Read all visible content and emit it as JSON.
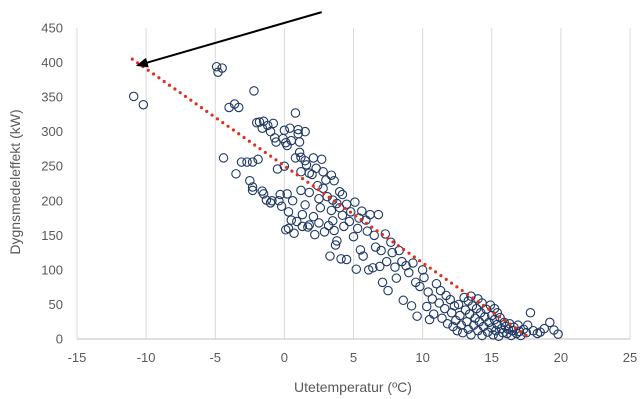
{
  "chart_data": {
    "type": "scatter",
    "title": "",
    "xlabel": "Utetemperatur  (ºC)",
    "ylabel": "Dygnsmedeleffekt  (kW)",
    "xlim": [
      -15,
      25
    ],
    "ylim": [
      0,
      450
    ],
    "x_ticks": [
      "-15",
      "-10",
      "-5",
      "0",
      "5",
      "10",
      "15",
      "20",
      "25"
    ],
    "y_ticks": [
      "0",
      "50",
      "100",
      "150",
      "200",
      "250",
      "300",
      "350",
      "400",
      "450"
    ],
    "grid": "vertical",
    "marker_color": "#1F3864",
    "trendline": {
      "color": "#E0301E",
      "style": "dotted",
      "x": [
        -11,
        17.5
      ],
      "y": [
        405,
        5
      ]
    },
    "arrow": {
      "color": "#000000",
      "from": [
        2.7,
        473
      ],
      "to": [
        -10.6,
        396
      ]
    },
    "series": [
      {
        "points": [
          [
            -10.9,
            351
          ],
          [
            -10.2,
            339
          ],
          [
            -4.9,
            394
          ],
          [
            -4.8,
            386
          ],
          [
            -4.5,
            392
          ],
          [
            -4.4,
            262
          ],
          [
            -4,
            335
          ],
          [
            -3.6,
            340
          ],
          [
            -3.3,
            335
          ],
          [
            -3.5,
            239
          ],
          [
            -3.1,
            256
          ],
          [
            -2.7,
            256
          ],
          [
            -2.5,
            229
          ],
          [
            -2.3,
            256
          ],
          [
            -2.3,
            220
          ],
          [
            -2.3,
            215
          ],
          [
            -2.2,
            359
          ],
          [
            -2,
            313
          ],
          [
            -1.9,
            260
          ],
          [
            -1.8,
            314
          ],
          [
            -1.6,
            305
          ],
          [
            -1.5,
            315
          ],
          [
            -1.6,
            214
          ],
          [
            -1.5,
            210
          ],
          [
            -1.3,
            201
          ],
          [
            -1.2,
            309
          ],
          [
            -1,
            300
          ],
          [
            -1,
            197
          ],
          [
            -0.9,
            200
          ],
          [
            -0.8,
            312
          ],
          [
            -0.7,
            291
          ],
          [
            -0.6,
            285
          ],
          [
            -0.5,
            246
          ],
          [
            -0.4,
            200
          ],
          [
            -0.3,
            209
          ],
          [
            -0.2,
            192
          ],
          [
            -0.1,
            290
          ],
          [
            0,
            302
          ],
          [
            0,
            250
          ],
          [
            0.1,
            284
          ],
          [
            0.1,
            158
          ],
          [
            0.2,
            280
          ],
          [
            0.2,
            210
          ],
          [
            0.3,
            184
          ],
          [
            0.3,
            160
          ],
          [
            0.4,
            305
          ],
          [
            0.5,
            287
          ],
          [
            0.5,
            172
          ],
          [
            0.6,
            200
          ],
          [
            0.7,
            153
          ],
          [
            0.8,
            327
          ],
          [
            0.8,
            262
          ],
          [
            0.9,
            170
          ],
          [
            1,
            303
          ],
          [
            1,
            297
          ],
          [
            1.1,
            285
          ],
          [
            1.1,
            270
          ],
          [
            1.2,
            263
          ],
          [
            1.2,
            242
          ],
          [
            1.2,
            215
          ],
          [
            1.3,
            180
          ],
          [
            1.3,
            163
          ],
          [
            1.5,
            300
          ],
          [
            1.5,
            258
          ],
          [
            1.5,
            194
          ],
          [
            1.6,
            252
          ],
          [
            1.7,
            162
          ],
          [
            1.8,
            240
          ],
          [
            1.8,
            212
          ],
          [
            1.8,
            165
          ],
          [
            2,
            238
          ],
          [
            2.1,
            262
          ],
          [
            2.1,
            177
          ],
          [
            2.2,
            151
          ],
          [
            2.3,
            247
          ],
          [
            2.4,
            222
          ],
          [
            2.5,
            203
          ],
          [
            2.5,
            168
          ],
          [
            2.6,
            190
          ],
          [
            2.7,
            260
          ],
          [
            2.8,
            242
          ],
          [
            2.8,
            218
          ],
          [
            2.9,
            155
          ],
          [
            3,
            230
          ],
          [
            3.1,
            206
          ],
          [
            3.2,
            164
          ],
          [
            3.3,
            120
          ],
          [
            3.4,
            237
          ],
          [
            3.4,
            186
          ],
          [
            3.5,
            201
          ],
          [
            3.5,
            171
          ],
          [
            3.6,
            229
          ],
          [
            3.6,
            157
          ],
          [
            3.7,
            136
          ],
          [
            3.8,
            196
          ],
          [
            3.8,
            142
          ],
          [
            4,
            213
          ],
          [
            4,
            190
          ],
          [
            4.1,
            116
          ],
          [
            4.2,
            209
          ],
          [
            4.2,
            179
          ],
          [
            4.3,
            163
          ],
          [
            4.5,
            195
          ],
          [
            4.5,
            115
          ],
          [
            4.7,
            170
          ],
          [
            4.8,
            184
          ],
          [
            5,
            148
          ],
          [
            5.1,
            198
          ],
          [
            5.2,
            101
          ],
          [
            5.3,
            160
          ],
          [
            5.4,
            175
          ],
          [
            5.5,
            129
          ],
          [
            5.6,
            185
          ],
          [
            5.7,
            120
          ],
          [
            5.9,
            172
          ],
          [
            6,
            156
          ],
          [
            6.1,
            100
          ],
          [
            6.2,
            180
          ],
          [
            6.4,
            103
          ],
          [
            6.5,
            150
          ],
          [
            6.6,
            133
          ],
          [
            6.8,
            180
          ],
          [
            6.9,
            105
          ],
          [
            7,
            128
          ],
          [
            7.1,
            82
          ],
          [
            7.3,
            152
          ],
          [
            7.4,
            112
          ],
          [
            7.5,
            70
          ],
          [
            7.7,
            140
          ],
          [
            7.8,
            125
          ],
          [
            8,
            104
          ],
          [
            8.1,
            88
          ],
          [
            8.3,
            128
          ],
          [
            8.5,
            112
          ],
          [
            8.6,
            56
          ],
          [
            8.8,
            106
          ],
          [
            9,
            96
          ],
          [
            9.2,
            48
          ],
          [
            9.3,
            110
          ],
          [
            9.5,
            82
          ],
          [
            9.6,
            33
          ],
          [
            9.8,
            76
          ],
          [
            10,
            100
          ],
          [
            10.1,
            89
          ],
          [
            10.3,
            47
          ],
          [
            10.4,
            68
          ],
          [
            10.5,
            28
          ],
          [
            10.7,
            58
          ],
          [
            10.8,
            36
          ],
          [
            11,
            80
          ],
          [
            11.2,
            52
          ],
          [
            11.3,
            70
          ],
          [
            11.4,
            30
          ],
          [
            11.6,
            44
          ],
          [
            11.7,
            63
          ],
          [
            11.8,
            22
          ],
          [
            12,
            57
          ],
          [
            12.1,
            38
          ],
          [
            12.2,
            18
          ],
          [
            12.3,
            48
          ],
          [
            12.4,
            27
          ],
          [
            12.5,
            12
          ],
          [
            12.6,
            50
          ],
          [
            12.7,
            34
          ],
          [
            12.8,
            20
          ],
          [
            12.9,
            9
          ],
          [
            13,
            60
          ],
          [
            13.1,
            42
          ],
          [
            13.2,
            25
          ],
          [
            13.3,
            55
          ],
          [
            13.3,
            14
          ],
          [
            13.4,
            36
          ],
          [
            13.5,
            62
          ],
          [
            13.5,
            6
          ],
          [
            13.6,
            48
          ],
          [
            13.7,
            20
          ],
          [
            13.8,
            30
          ],
          [
            13.9,
            44
          ],
          [
            14,
            58
          ],
          [
            14,
            12
          ],
          [
            14.1,
            25
          ],
          [
            14.2,
            38
          ],
          [
            14.3,
            52
          ],
          [
            14.3,
            5
          ],
          [
            14.4,
            18
          ],
          [
            14.5,
            32
          ],
          [
            14.6,
            43
          ],
          [
            14.7,
            10
          ],
          [
            14.8,
            24
          ],
          [
            14.9,
            49
          ],
          [
            15,
            16
          ],
          [
            15,
            34
          ],
          [
            15.1,
            6
          ],
          [
            15.2,
            28
          ],
          [
            15.2,
            44
          ],
          [
            15.3,
            12
          ],
          [
            15.4,
            38
          ],
          [
            15.4,
            21
          ],
          [
            15.5,
            4
          ],
          [
            15.6,
            31
          ],
          [
            15.7,
            15
          ],
          [
            15.8,
            9
          ],
          [
            15.9,
            24
          ],
          [
            16,
            18
          ],
          [
            16.1,
            8
          ],
          [
            16.2,
            14
          ],
          [
            16.3,
            22
          ],
          [
            16.4,
            5
          ],
          [
            16.5,
            12
          ],
          [
            16.6,
            17
          ],
          [
            16.8,
            8
          ],
          [
            16.9,
            20
          ],
          [
            17,
            11
          ],
          [
            17.1,
            5
          ],
          [
            17.3,
            14
          ],
          [
            17.5,
            9
          ],
          [
            17.6,
            20
          ],
          [
            17.8,
            38
          ],
          [
            18,
            12
          ],
          [
            18.3,
            8
          ],
          [
            18.5,
            10
          ],
          [
            18.8,
            15
          ],
          [
            19.2,
            24
          ],
          [
            19.5,
            13
          ],
          [
            19.8,
            7
          ]
        ]
      }
    ]
  }
}
